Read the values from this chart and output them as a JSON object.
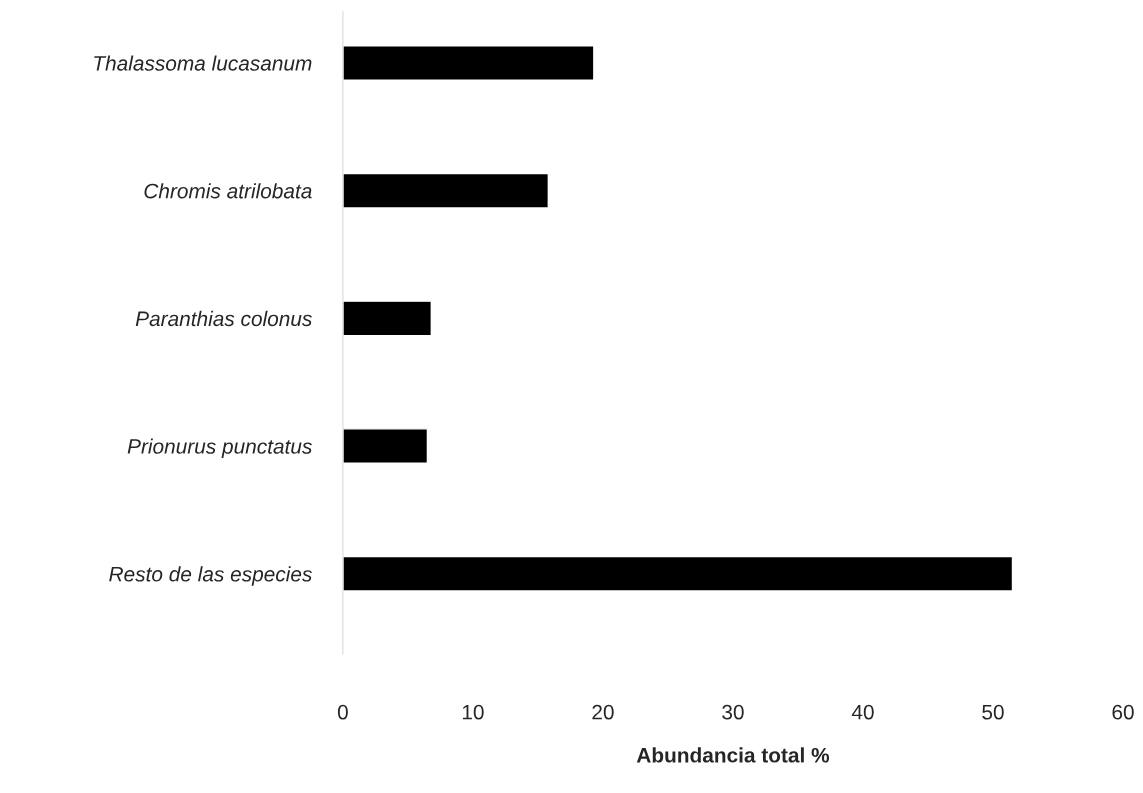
{
  "chart_data": {
    "type": "bar",
    "orientation": "horizontal",
    "xlabel": "Abundancia total %",
    "categories": [
      "Thalassoma lucasanum",
      "Chromis atrilobata",
      "Paranthias colonus",
      "Prionurus punctatus",
      "Resto de las especies"
    ],
    "values": [
      19.3,
      15.8,
      6.8,
      6.5,
      51.5
    ],
    "color": "#000000",
    "xlim": [
      0,
      60
    ],
    "xticks": [
      0,
      10,
      20,
      30,
      40,
      50,
      60
    ],
    "grid": false,
    "legend": false
  }
}
